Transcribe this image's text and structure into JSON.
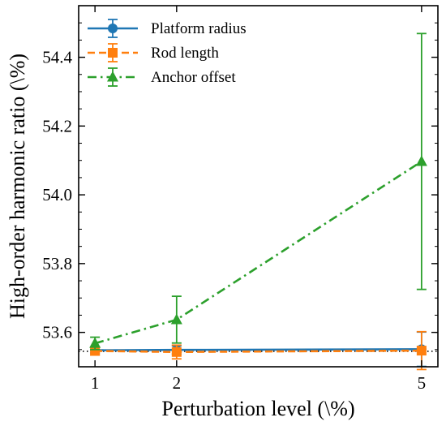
{
  "chart_data": {
    "type": "line",
    "xlabel": "Perturbation level (\\%)",
    "ylabel": "High-order harmonic ratio (\\%)",
    "x_ticks": [
      "1",
      "2",
      "5"
    ],
    "x_values": [
      1,
      2,
      5
    ],
    "xlim": [
      0.8,
      5.2
    ],
    "ylim": [
      53.5,
      54.55
    ],
    "y_ticks": [
      "53.6",
      "53.8",
      "54.0",
      "54.2",
      "54.4"
    ],
    "y_tick_values": [
      53.6,
      53.8,
      54.0,
      54.2,
      54.4
    ],
    "reference_line": 53.545,
    "legend_position": "top-left",
    "grid": false,
    "series": [
      {
        "name": "Platform radius",
        "color": "#1f77b4",
        "line_style": "solid",
        "marker": "circle",
        "values": [
          53.548,
          53.549,
          53.551
        ],
        "errors": [
          0.008,
          0.012,
          0.05
        ]
      },
      {
        "name": "Rod length",
        "color": "#ff7f0e",
        "line_style": "dashed",
        "marker": "square",
        "values": [
          53.546,
          53.543,
          53.547
        ],
        "errors": [
          0.012,
          0.02,
          0.055
        ]
      },
      {
        "name": "Anchor offset",
        "color": "#2ca02c",
        "line_style": "dashdot",
        "marker": "triangle",
        "values": [
          53.568,
          53.637,
          54.097
        ],
        "errors": [
          0.018,
          0.068,
          0.372
        ]
      }
    ]
  }
}
